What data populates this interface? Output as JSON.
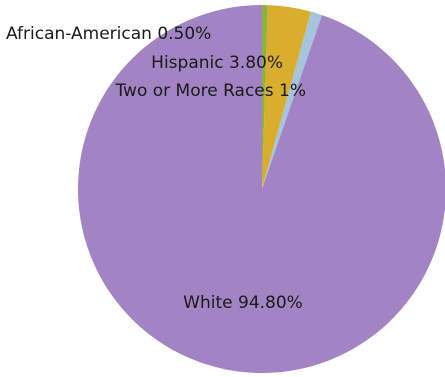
{
  "chart_data": {
    "type": "pie",
    "title": "",
    "slices": [
      {
        "label": "African-American",
        "value": 0.5,
        "display": "African-American 0.50%",
        "color": "#8cb33f"
      },
      {
        "label": "Hispanic",
        "value": 3.8,
        "display": "Hispanic 3.80%",
        "color": "#d9ae2e"
      },
      {
        "label": "Two or More Races",
        "value": 1.0,
        "display": "Two or More Races 1%",
        "color": "#a6c4de"
      },
      {
        "label": "White",
        "value": 94.8,
        "display": "White 94.80%",
        "color": "#a284c4"
      }
    ],
    "start_angle": "12 o'clock",
    "direction": "clockwise",
    "legend": "none",
    "data_labels": true
  }
}
